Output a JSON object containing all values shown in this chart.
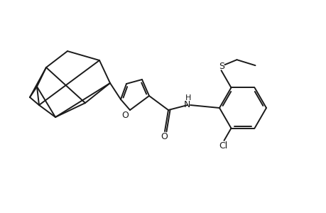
{
  "background_color": "#ffffff",
  "line_color": "#1a1a1a",
  "line_width": 1.4,
  "figsize": [
    4.6,
    3.0
  ],
  "dpi": 100,
  "xlim": [
    0,
    460
  ],
  "ylim": [
    0,
    300
  ]
}
